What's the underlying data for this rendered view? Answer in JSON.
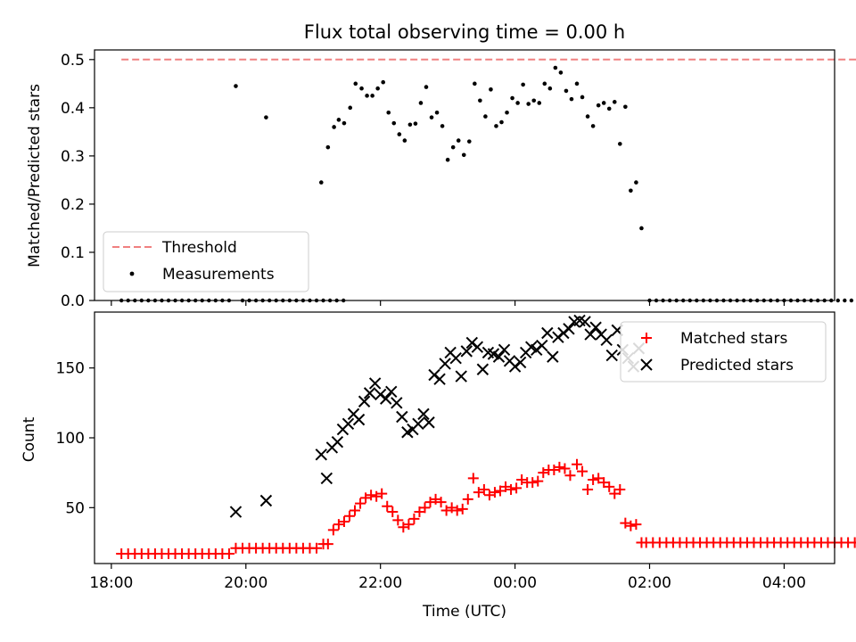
{
  "chart_data": [
    {
      "type": "scatter",
      "title": "Flux total observing time = 0.00 h",
      "ylabel": "Matched/Predicted stars",
      "xlabel": "",
      "x_unit": "hours since 18:00 UTC",
      "xlim": [
        -0.25,
        10.75
      ],
      "ylim": [
        0,
        0.52
      ],
      "yticks": [
        0.0,
        0.1,
        0.2,
        0.3,
        0.4,
        0.5
      ],
      "ytick_labels": [
        "0.0",
        "0.1",
        "0.2",
        "0.3",
        "0.4",
        "0.5"
      ],
      "threshold": {
        "name": "Threshold",
        "value": 0.5,
        "x": [
          0.15,
          11.13
        ],
        "color": "#f08080"
      },
      "legend": {
        "position": "lower-left",
        "entries": [
          "Threshold",
          "Measurements"
        ]
      },
      "series": [
        {
          "name": "Measurements",
          "color": "#000000",
          "marker": "dot",
          "points": [
            [
              1.85,
              0.445
            ],
            [
              2.3,
              0.38
            ],
            [
              3.12,
              0.245
            ],
            [
              3.22,
              0.318
            ],
            [
              3.31,
              0.36
            ],
            [
              3.38,
              0.375
            ],
            [
              3.46,
              0.368
            ],
            [
              3.55,
              0.4
            ],
            [
              3.63,
              0.45
            ],
            [
              3.72,
              0.44
            ],
            [
              3.8,
              0.425
            ],
            [
              3.88,
              0.425
            ],
            [
              3.96,
              0.44
            ],
            [
              4.04,
              0.453
            ],
            [
              4.12,
              0.39
            ],
            [
              4.2,
              0.368
            ],
            [
              4.28,
              0.345
            ],
            [
              4.36,
              0.332
            ],
            [
              4.44,
              0.365
            ],
            [
              4.52,
              0.367
            ],
            [
              4.6,
              0.41
            ],
            [
              4.68,
              0.443
            ],
            [
              4.76,
              0.38
            ],
            [
              4.84,
              0.39
            ],
            [
              4.92,
              0.362
            ],
            [
              5.0,
              0.292
            ],
            [
              5.08,
              0.318
            ],
            [
              5.16,
              0.332
            ],
            [
              5.24,
              0.302
            ],
            [
              5.32,
              0.33
            ],
            [
              5.4,
              0.45
            ],
            [
              5.48,
              0.415
            ],
            [
              5.56,
              0.382
            ],
            [
              5.64,
              0.438
            ],
            [
              5.72,
              0.362
            ],
            [
              5.8,
              0.37
            ],
            [
              5.88,
              0.39
            ],
            [
              5.96,
              0.42
            ],
            [
              6.04,
              0.41
            ],
            [
              6.12,
              0.448
            ],
            [
              6.2,
              0.408
            ],
            [
              6.28,
              0.415
            ],
            [
              6.36,
              0.41
            ],
            [
              6.44,
              0.45
            ],
            [
              6.52,
              0.44
            ],
            [
              6.6,
              0.483
            ],
            [
              6.68,
              0.473
            ],
            [
              6.76,
              0.435
            ],
            [
              6.84,
              0.418
            ],
            [
              6.92,
              0.45
            ],
            [
              7.0,
              0.422
            ],
            [
              7.08,
              0.382
            ],
            [
              7.16,
              0.362
            ],
            [
              7.24,
              0.405
            ],
            [
              7.32,
              0.41
            ],
            [
              7.4,
              0.398
            ],
            [
              7.48,
              0.412
            ],
            [
              7.56,
              0.325
            ],
            [
              7.64,
              0.402
            ],
            [
              7.72,
              0.228
            ],
            [
              7.8,
              0.245
            ],
            [
              7.88,
              0.15
            ]
          ],
          "zero_runs": [
            [
              0.15,
              1.8
            ],
            [
              1.95,
              2.75
            ],
            [
              2.85,
              3.45
            ],
            [
              8.0,
              11.13
            ]
          ],
          "zero_step": 0.1
        }
      ]
    },
    {
      "type": "scatter",
      "title": "",
      "ylabel": "Count",
      "xlabel": "Time (UTC)",
      "x_unit": "hours since 18:00 UTC",
      "xlim": [
        -0.25,
        10.75
      ],
      "ylim": [
        10,
        190
      ],
      "yticks": [
        50,
        100,
        150
      ],
      "ytick_labels": [
        "50",
        "100",
        "150"
      ],
      "xticks": [
        0,
        2,
        4,
        6,
        8,
        10
      ],
      "xtick_labels": [
        "18:00",
        "20:00",
        "22:00",
        "00:00",
        "02:00",
        "04:00"
      ],
      "legend": {
        "position": "top-right",
        "entries": [
          "Matched stars",
          "Predicted stars"
        ]
      },
      "series": [
        {
          "name": "Matched stars",
          "color": "#ff0000",
          "marker": "plus",
          "points": [
            [
              3.15,
              24
            ],
            [
              3.22,
              24
            ],
            [
              3.3,
              34
            ],
            [
              3.38,
              38
            ],
            [
              3.46,
              40
            ],
            [
              3.54,
              44
            ],
            [
              3.62,
              48
            ],
            [
              3.7,
              53
            ],
            [
              3.78,
              57
            ],
            [
              3.86,
              59
            ],
            [
              3.94,
              58
            ],
            [
              4.02,
              60
            ],
            [
              4.1,
              51
            ],
            [
              4.18,
              47
            ],
            [
              4.26,
              41
            ],
            [
              4.34,
              36
            ],
            [
              4.42,
              38
            ],
            [
              4.5,
              42
            ],
            [
              4.58,
              47
            ],
            [
              4.66,
              50
            ],
            [
              4.74,
              54
            ],
            [
              4.82,
              56
            ],
            [
              4.9,
              54
            ],
            [
              4.98,
              48
            ],
            [
              5.06,
              50
            ],
            [
              5.14,
              48
            ],
            [
              5.22,
              49
            ],
            [
              5.3,
              56
            ],
            [
              5.38,
              71
            ],
            [
              5.46,
              61
            ],
            [
              5.54,
              63
            ],
            [
              5.62,
              59
            ],
            [
              5.7,
              61
            ],
            [
              5.78,
              62
            ],
            [
              5.86,
              65
            ],
            [
              5.94,
              63
            ],
            [
              6.02,
              64
            ],
            [
              6.1,
              70
            ],
            [
              6.18,
              68
            ],
            [
              6.26,
              68
            ],
            [
              6.34,
              69
            ],
            [
              6.42,
              75
            ],
            [
              6.5,
              77
            ],
            [
              6.58,
              77
            ],
            [
              6.66,
              79
            ],
            [
              6.74,
              78
            ],
            [
              6.82,
              73
            ],
            [
              6.92,
              81
            ],
            [
              7.0,
              76
            ],
            [
              7.08,
              63
            ],
            [
              7.16,
              70
            ],
            [
              7.24,
              71
            ],
            [
              7.32,
              68
            ],
            [
              7.4,
              65
            ],
            [
              7.48,
              60
            ],
            [
              7.56,
              63
            ],
            [
              7.64,
              39
            ],
            [
              7.72,
              37
            ],
            [
              7.8,
              38
            ],
            [
              7.88,
              25
            ]
          ],
          "baseline_runs": [
            [
              0.15,
              1.8,
              17
            ],
            [
              1.85,
              3.08,
              21
            ],
            [
              7.95,
              11.13,
              25
            ]
          ],
          "baseline_step": 0.1
        },
        {
          "name": "Predicted stars",
          "color": "#000000",
          "marker": "x",
          "points": [
            [
              1.85,
              47
            ],
            [
              2.3,
              55
            ],
            [
              3.12,
              88
            ],
            [
              3.2,
              71
            ],
            [
              3.28,
              93
            ],
            [
              3.36,
              97
            ],
            [
              3.44,
              106
            ],
            [
              3.52,
              110
            ],
            [
              3.6,
              117
            ],
            [
              3.68,
              113
            ],
            [
              3.76,
              126
            ],
            [
              3.84,
              132
            ],
            [
              3.92,
              139
            ],
            [
              4.0,
              131
            ],
            [
              4.08,
              128
            ],
            [
              4.16,
              133
            ],
            [
              4.24,
              125
            ],
            [
              4.32,
              115
            ],
            [
              4.4,
              104
            ],
            [
              4.48,
              106
            ],
            [
              4.56,
              110
            ],
            [
              4.64,
              117
            ],
            [
              4.72,
              111
            ],
            [
              4.8,
              145
            ],
            [
              4.88,
              142
            ],
            [
              4.96,
              153
            ],
            [
              5.04,
              161
            ],
            [
              5.12,
              157
            ],
            [
              5.2,
              144
            ],
            [
              5.28,
              162
            ],
            [
              5.36,
              168
            ],
            [
              5.44,
              165
            ],
            [
              5.52,
              149
            ],
            [
              5.6,
              161
            ],
            [
              5.68,
              160
            ],
            [
              5.76,
              158
            ],
            [
              5.84,
              163
            ],
            [
              5.92,
              155
            ],
            [
              6.0,
              151
            ],
            [
              6.08,
              154
            ],
            [
              6.16,
              161
            ],
            [
              6.24,
              165
            ],
            [
              6.32,
              163
            ],
            [
              6.4,
              166
            ],
            [
              6.48,
              175
            ],
            [
              6.56,
              158
            ],
            [
              6.64,
              172
            ],
            [
              6.72,
              175
            ],
            [
              6.8,
              178
            ],
            [
              6.88,
              183
            ],
            [
              6.96,
              184
            ],
            [
              7.04,
              183
            ],
            [
              7.12,
              174
            ],
            [
              7.2,
              179
            ],
            [
              7.28,
              174
            ],
            [
              7.36,
              170
            ],
            [
              7.44,
              159
            ],
            [
              7.52,
              177
            ],
            [
              7.6,
              163
            ],
            [
              7.68,
              157
            ],
            [
              7.76,
              151
            ],
            [
              7.84,
              164
            ]
          ]
        }
      ]
    }
  ]
}
